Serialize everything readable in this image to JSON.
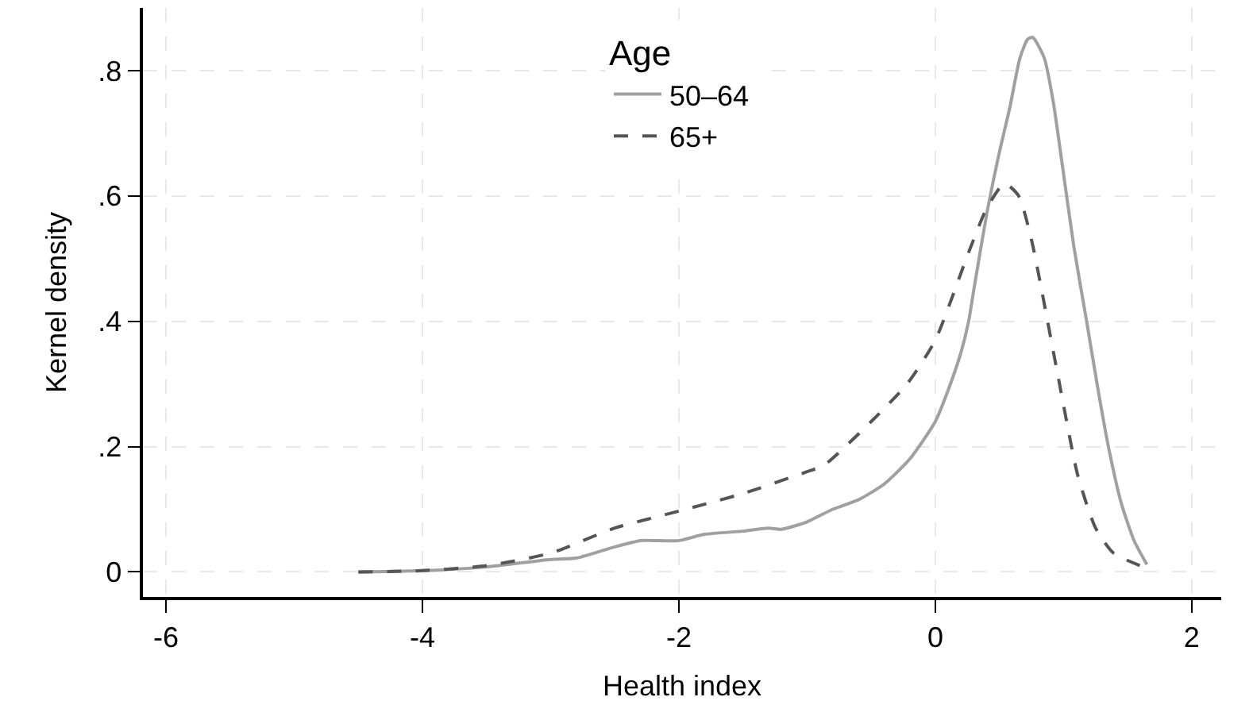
{
  "chart_data": {
    "type": "line",
    "xlabel": "Health index",
    "ylabel": "Kernel density",
    "legend_title": "Age",
    "xlim": [
      -6.18,
      2.23
    ],
    "xticks": [
      -6,
      -4,
      -2,
      0,
      2
    ],
    "ylim": [
      -0.04,
      0.9
    ],
    "yticks": [
      {
        "value": 0,
        "label": "0"
      },
      {
        "value": 0.2,
        "label": ".2"
      },
      {
        "value": 0.4,
        "label": ".4"
      },
      {
        "value": 0.6,
        "label": ".6"
      },
      {
        "value": 0.8,
        "label": ".8"
      }
    ],
    "grid": true,
    "legend": "top",
    "marker": "none",
    "series": [
      {
        "name": "50–64",
        "color": "#a0a0a0",
        "line_style": "solid",
        "x": [
          -4.5,
          -4,
          -3.5,
          -3,
          -2.8,
          -2.5,
          -2.3,
          -2.2,
          -2,
          -1.8,
          -1.5,
          -1.3,
          -1.2,
          -1,
          -0.8,
          -0.6,
          -0.4,
          -0.2,
          0,
          0.1,
          0.2,
          0.26,
          0.3,
          0.4,
          0.5,
          0.58,
          0.66,
          0.72,
          0.76,
          0.85,
          0.92,
          0.99,
          1.08,
          1.18,
          1.27,
          1.35,
          1.45,
          1.55,
          1.65
        ],
        "values": [
          0,
          0.002,
          0.008,
          0.02,
          0.022,
          0.04,
          0.05,
          0.05,
          0.05,
          0.06,
          0.065,
          0.07,
          0.068,
          0.08,
          0.1,
          0.115,
          0.14,
          0.18,
          0.24,
          0.29,
          0.35,
          0.4,
          0.45,
          0.57,
          0.67,
          0.74,
          0.82,
          0.85,
          0.853,
          0.82,
          0.75,
          0.65,
          0.52,
          0.4,
          0.29,
          0.2,
          0.11,
          0.05,
          0.012
        ]
      },
      {
        "name": "65+",
        "color": "#555555",
        "line_style": "dashed",
        "x": [
          -4.5,
          -4,
          -3.5,
          -3,
          -2.5,
          -2,
          -1.5,
          -1,
          -0.87,
          -0.5,
          -0.22,
          0,
          0.26,
          0.4,
          0.54,
          0.65,
          0.75,
          0.95,
          1.11,
          1.25,
          1.39,
          1.66
        ],
        "values": [
          0,
          0.002,
          0.01,
          0.03,
          0.07,
          0.097,
          0.125,
          0.16,
          0.17,
          0.24,
          0.3,
          0.37,
          0.51,
          0.58,
          0.62,
          0.6,
          0.53,
          0.32,
          0.155,
          0.07,
          0.03,
          0.005
        ]
      }
    ]
  }
}
